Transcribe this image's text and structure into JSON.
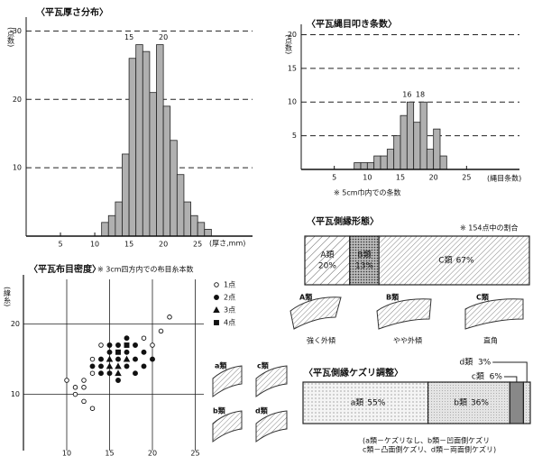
{
  "chart_data": [
    {
      "type": "histogram",
      "title": "〈平瓦厚さ分布〉",
      "y_label": "(点数)",
      "x_label": "(厚さ,mm)",
      "bins": [
        11,
        12,
        13,
        14,
        15,
        16,
        17,
        18,
        19,
        20,
        21,
        22,
        23,
        24,
        25,
        26,
        27
      ],
      "values": [
        2,
        3,
        5,
        12,
        26,
        28,
        27,
        21,
        28,
        19,
        14,
        9,
        5,
        3,
        2,
        1
      ],
      "xlim": [
        0,
        33
      ],
      "xticks": [
        5,
        10,
        15,
        20,
        25
      ],
      "ylim": [
        0,
        31.5
      ],
      "yticks": [
        10,
        20,
        30
      ],
      "peak_labels": [
        15,
        20
      ],
      "color": "#b0b0b0",
      "grid": true
    },
    {
      "type": "histogram",
      "title": "〈平瓦縄目叩き条数〉",
      "y_label": "(点数)",
      "x_label": "(縄目条数)",
      "note": "※ 5cm巾内での条数",
      "bins": [
        8,
        9,
        10,
        11,
        12,
        13,
        14,
        15,
        16,
        17,
        18,
        19,
        20,
        21,
        22
      ],
      "values": [
        1,
        1,
        1,
        2,
        2,
        3,
        5,
        8,
        10,
        7,
        10,
        3,
        6,
        2
      ],
      "xlim": [
        0,
        33
      ],
      "xticks": [
        5,
        10,
        15,
        20,
        25
      ],
      "ylim": [
        0,
        21
      ],
      "yticks": [
        5,
        10,
        15,
        20
      ],
      "peak_labels": [
        16,
        18
      ],
      "color": "#b0b0b0",
      "grid": true
    },
    {
      "type": "stacked-bar",
      "title": "〈平瓦側縁形態〉",
      "note": "※ 154点中の割合",
      "series": [
        {
          "name": "A類",
          "values": [
            20
          ],
          "value_labels": [
            "20%"
          ],
          "pattern": "hatch-a"
        },
        {
          "name": "B類",
          "values": [
            13
          ],
          "value_labels": [
            "13%"
          ],
          "pattern": "dots-dark"
        },
        {
          "name": "C類",
          "values": [
            67
          ],
          "value_labels": [
            "67%"
          ],
          "pattern": "hatch-c"
        }
      ],
      "xlim": [
        0,
        100
      ],
      "shapes": [
        {
          "name": "A類",
          "description": "強く外傾"
        },
        {
          "name": "B類",
          "description": "やや外傾"
        },
        {
          "name": "C類",
          "description": "直角"
        }
      ]
    },
    {
      "type": "scatter",
      "title": "〈平瓦布目密度〉",
      "note": "※ 3cm四方内での布目糸本数",
      "y_label": "(緯糸)",
      "xlim": [
        6,
        26
      ],
      "xticks": [
        10,
        15,
        20,
        25
      ],
      "ylim": [
        2,
        27
      ],
      "yticks": [
        10,
        20
      ],
      "grid": true,
      "series": [
        {
          "name": "1点",
          "marker": "open-circle",
          "x": [
            11,
            11,
            12,
            12,
            13,
            10,
            13,
            14,
            19,
            20,
            21,
            22,
            13,
            12
          ],
          "values": [
            11,
            10,
            12,
            9,
            13,
            12,
            15,
            17,
            18,
            17,
            19,
            21,
            8,
            11
          ]
        },
        {
          "name": "2点",
          "marker": "circle",
          "x": [
            14,
            15,
            15,
            16,
            16,
            17,
            17,
            18,
            18,
            19,
            16,
            14,
            15,
            17,
            18,
            19,
            20,
            13,
            14
          ],
          "values": [
            14,
            16,
            13,
            15,
            17,
            16,
            14,
            17,
            15,
            16,
            12,
            15,
            17,
            18,
            13,
            14,
            15,
            14,
            13
          ]
        },
        {
          "name": "3点",
          "marker": "triangle",
          "x": [
            15,
            16,
            17,
            16,
            15
          ],
          "values": [
            14,
            14,
            15,
            13,
            15
          ]
        },
        {
          "name": "4点",
          "marker": "square",
          "x": [
            16,
            17
          ],
          "values": [
            16,
            17
          ]
        }
      ],
      "sketches": [
        "a類",
        "c類",
        "b類",
        "d類"
      ]
    },
    {
      "type": "stacked-bar",
      "title": "〈平瓦側縁ケズリ調整〉",
      "series": [
        {
          "name": "a類",
          "values": [
            55
          ],
          "value_labels": [
            "55%"
          ],
          "pattern": "dots-light"
        },
        {
          "name": "b類",
          "values": [
            36
          ],
          "value_labels": [
            "36%"
          ],
          "pattern": "dots-fine"
        },
        {
          "name": "c類",
          "values": [
            6
          ],
          "value_labels": [
            "6%"
          ],
          "pattern": "solid-gray"
        },
        {
          "name": "d類",
          "values": [
            3
          ],
          "value_labels": [
            "3%"
          ],
          "pattern": "dots-fine"
        }
      ],
      "xlim": [
        0,
        100
      ],
      "notes": [
        "(a類－ケズリなし、b類－凹面側ケズリ",
        "c類－凸面側ケズリ、d類－両面側ケズリ)"
      ]
    }
  ]
}
